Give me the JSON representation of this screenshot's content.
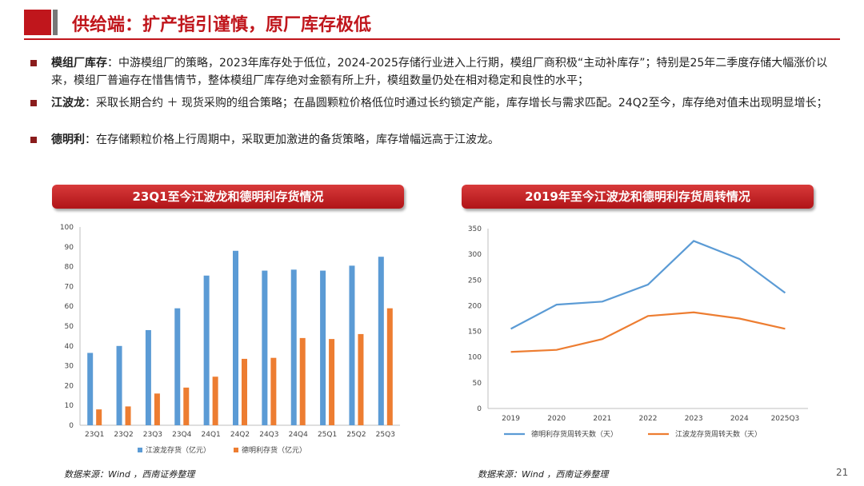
{
  "title": "供给端：扩产指引谨慎，原厂库存极低",
  "bullets": [
    {
      "label": "模组厂库存",
      "text": "：中游模组厂的策略，2023年库存处于低位，2024-2025存储行业进入上行期，模组厂商积极“主动补库存”；特别是25年二季度存储大幅涨价以来，模组厂普遍存在惜售情节，整体模组厂库存绝对金额有所上升，模组数量仍处在相对稳定和良性的水平；"
    },
    {
      "label": "江波龙",
      "text": "：采取长期合约 ＋ 现货采购的组合策略；在晶圆颗粒价格低位时通过长约锁定产能，库存增长与需求匹配。24Q2至今，库存绝对值未出现明显增长；"
    },
    {
      "label": "德明利",
      "text": "：在存储颗粒价格上行周期中，采取更加激进的备货策略，库存增幅远高于江波龙。"
    }
  ],
  "left_panel": {
    "banner": "23Q1至今江波龙和德明利存货情况",
    "source": "数据来源：Wind ，西南证券整理"
  },
  "right_panel": {
    "banner": "2019年至今江波龙和德明利存货周转情况",
    "source": "数据来源：Wind ，西南证券整理"
  },
  "page_number": "21",
  "colors": {
    "brand_red": "#c0161c",
    "series_blue": "#5b9bd5",
    "series_orange": "#ed7d31"
  },
  "chart_data": [
    {
      "type": "bar",
      "title": "23Q1至今江波龙和德明利存货情况",
      "categories": [
        "23Q1",
        "23Q2",
        "23Q3",
        "23Q4",
        "24Q1",
        "24Q2",
        "24Q3",
        "24Q4",
        "25Q1",
        "25Q2",
        "25Q3"
      ],
      "series": [
        {
          "name": "江波龙存货（亿元）",
          "values": [
            36.5,
            40,
            48,
            59,
            75.5,
            88,
            78,
            78.5,
            78,
            80.5,
            85
          ]
        },
        {
          "name": "德明利存货（亿元）",
          "values": [
            8,
            9.5,
            16,
            19,
            24.5,
            33.5,
            34,
            44,
            43.5,
            46,
            59
          ]
        }
      ],
      "ylim": [
        0,
        100
      ],
      "yticks": [
        0,
        10,
        20,
        30,
        40,
        50,
        60,
        70,
        80,
        90,
        100
      ],
      "legend": "bottom"
    },
    {
      "type": "line",
      "title": "2019年至今江波龙和德明利存货周转情况",
      "x": [
        "2019",
        "2020",
        "2021",
        "2022",
        "2023",
        "2024",
        "2025Q3"
      ],
      "series": [
        {
          "name": "德明利存货周转天数（天）",
          "values": [
            155,
            202,
            208,
            241,
            326,
            291,
            225
          ]
        },
        {
          "name": "江波龙存货周转天数（天）",
          "values": [
            110,
            114,
            135,
            180,
            187,
            175,
            155
          ]
        }
      ],
      "ylim": [
        0,
        350
      ],
      "yticks": [
        0,
        50,
        100,
        150,
        200,
        250,
        300,
        350
      ],
      "legend": "bottom"
    }
  ]
}
